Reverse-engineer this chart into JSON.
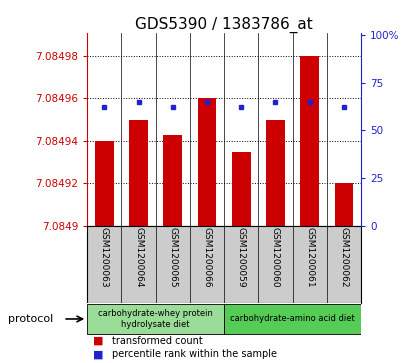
{
  "title": "GDS5390 / 1383786_at",
  "samples": [
    "GSM1200063",
    "GSM1200064",
    "GSM1200065",
    "GSM1200066",
    "GSM1200059",
    "GSM1200060",
    "GSM1200061",
    "GSM1200062"
  ],
  "transformed_count": [
    7.08494,
    7.08495,
    7.084943,
    7.08496,
    7.084935,
    7.08495,
    7.08498,
    7.08492
  ],
  "percentile_rank": [
    62,
    65,
    62,
    65,
    62,
    65,
    65,
    62
  ],
  "y_min": 7.0849,
  "y_max": 7.08499,
  "y_ticks": [
    7.0849,
    7.08492,
    7.08494,
    7.08496,
    7.08498
  ],
  "y_tick_labels": [
    "7.0849",
    "7.08492",
    "7.08494",
    "7.08496",
    "7.08498"
  ],
  "right_y_ticks": [
    0,
    25,
    50,
    75,
    100
  ],
  "right_y_labels": [
    "0",
    "25",
    "50",
    "75",
    "100%"
  ],
  "bar_color": "#cc0000",
  "dot_color": "#2222cc",
  "protocol_groups": [
    {
      "label": "carbohydrate-whey protein\nhydrolysate diet",
      "start": 0,
      "end": 4,
      "color": "#99dd99"
    },
    {
      "label": "carbohydrate-amino acid diet",
      "start": 4,
      "end": 8,
      "color": "#55cc55"
    }
  ],
  "legend_items": [
    {
      "label": "transformed count",
      "color": "#cc0000"
    },
    {
      "label": "percentile rank within the sample",
      "color": "#2222cc"
    }
  ],
  "left_label_color": "#cc0000",
  "right_label_color": "#2222cc",
  "bg_color": "#ffffff",
  "plot_bg_color": "#ffffff",
  "tick_area_color": "#cccccc",
  "title_fontsize": 11,
  "tick_fontsize": 7.5,
  "sample_fontsize": 6.5
}
